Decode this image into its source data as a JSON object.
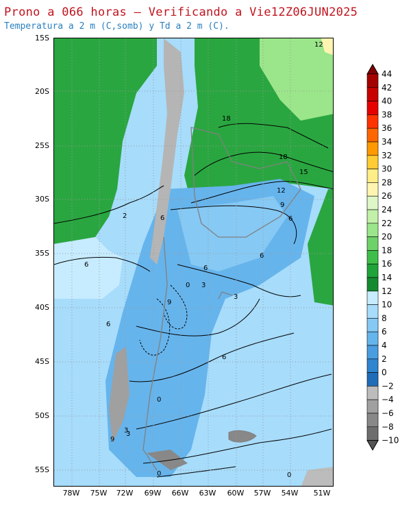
{
  "title": "Prono a 066 horas — Verificando a Vie12Z06JUN2025",
  "subtitle": "Temperatura a 2 m (C,somb) y Td a 2 m (C).",
  "lat_labels": [
    "15S",
    "20S",
    "25S",
    "30S",
    "35S",
    "40S",
    "45S",
    "50S",
    "55S"
  ],
  "lon_labels": [
    "78W",
    "75W",
    "72W",
    "69W",
    "66W",
    "63W",
    "60W",
    "57W",
    "54W",
    "51W"
  ],
  "colorbar": {
    "labels": [
      "44",
      "42",
      "40",
      "38",
      "36",
      "34",
      "32",
      "30",
      "28",
      "26",
      "24",
      "22",
      "20",
      "18",
      "16",
      "14",
      "12",
      "10",
      "8",
      "6",
      "4",
      "2",
      "0",
      "−2",
      "−4",
      "−6",
      "−8",
      "−10"
    ],
    "colors": [
      "#7f0000",
      "#a50000",
      "#c80000",
      "#e60000",
      "#ff3300",
      "#ff6600",
      "#ff9900",
      "#ffcc33",
      "#ffee88",
      "#fff5b0",
      "#dff7c8",
      "#c2f0a8",
      "#9be58a",
      "#6fd16a",
      "#3fbf4a",
      "#20a43a",
      "#168a30",
      "#c7ecff",
      "#a8dcfb",
      "#86c9f4",
      "#66b4ec",
      "#4a9ee0",
      "#2f85cf",
      "#1f6db8",
      "#bcbcbc",
      "#a0a0a0",
      "#888888",
      "#6e6e6e",
      "#555555"
    ]
  },
  "contour_labels": [
    "12",
    "18",
    "18",
    "15",
    "12",
    "9",
    "6",
    "6",
    "6",
    "3",
    "0",
    "9",
    "3",
    "6",
    "6",
    "6",
    "3",
    "0",
    "9",
    "3",
    "2",
    "0",
    "6",
    "0"
  ],
  "colors": {
    "title": "#c0141e",
    "subtitle": "#2a7fbf",
    "land_warm_green": "#2aa640",
    "ocean_cool_blue": "#9fd8fb",
    "andes_gray": "#b5b5b5"
  }
}
